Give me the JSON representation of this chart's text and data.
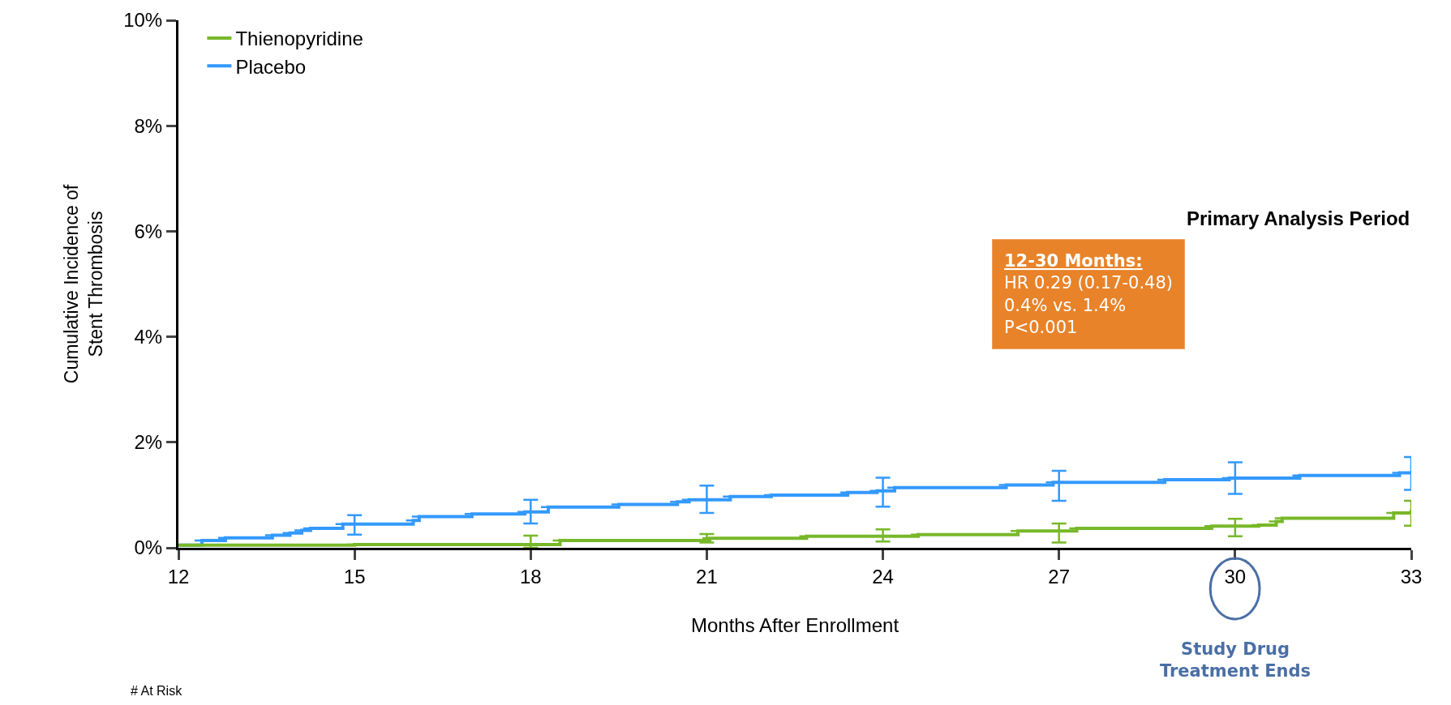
{
  "chart_data": {
    "type": "step",
    "xlabel": "Months After Enrollment",
    "ylabel": "Cumulative Incidence of\nStent Thrombosis",
    "xlim": [
      12,
      33
    ],
    "xticks": [
      12,
      15,
      18,
      21,
      24,
      27,
      30,
      33
    ],
    "ylim": [
      0,
      10
    ],
    "yticks": [
      {
        "value": 0,
        "label": "0%"
      },
      {
        "value": 2,
        "label": "2%"
      },
      {
        "value": 4,
        "label": "4%"
      },
      {
        "value": 6,
        "label": "6%"
      },
      {
        "value": 8,
        "label": "8%"
      },
      {
        "value": 10,
        "label": "10%"
      }
    ],
    "grid": false,
    "legend": "top left",
    "marker": "none",
    "line_style": "solid",
    "series": [
      {
        "name": "Thienopyridine",
        "color": "#77b829",
        "x": [
          12,
          15,
          18,
          18.5,
          21,
          21.05,
          22.7,
          24,
          24.6,
          26.3,
          27,
          27.3,
          29.6,
          30,
          30.4,
          30.7,
          30.8,
          32.7,
          33
        ],
        "values": [
          0.05,
          0.06,
          0.06,
          0.14,
          0.14,
          0.18,
          0.22,
          0.22,
          0.25,
          0.32,
          0.32,
          0.37,
          0.41,
          0.41,
          0.43,
          0.5,
          0.56,
          0.66,
          0.72
        ],
        "errors": [
          null,
          null,
          [
            0,
            0.23
          ],
          null,
          [
            0.1,
            0.26
          ],
          null,
          null,
          [
            0.12,
            0.35
          ],
          null,
          null,
          [
            0.1,
            0.46
          ],
          null,
          null,
          [
            0.22,
            0.55
          ],
          null,
          null,
          null,
          null,
          [
            0.42,
            0.89
          ]
        ]
      },
      {
        "name": "Placebo",
        "color": "#3399ff",
        "x": [
          12,
          12.4,
          12.8,
          13.6,
          13.9,
          14.1,
          14.25,
          14.8,
          15,
          16.0,
          16.1,
          17.0,
          17.9,
          18,
          18.3,
          19.5,
          20.5,
          20.7,
          21,
          21.4,
          22.1,
          22.9,
          23.4,
          23.9,
          24,
          24.2,
          26.1,
          26.9,
          27,
          28.8,
          29.9,
          30,
          31.1,
          32.8,
          33
        ],
        "values": [
          0.05,
          0.14,
          0.19,
          0.24,
          0.28,
          0.33,
          0.37,
          0.45,
          0.45,
          0.52,
          0.59,
          0.64,
          0.68,
          0.68,
          0.77,
          0.82,
          0.87,
          0.91,
          0.91,
          0.97,
          1.0,
          1.0,
          1.05,
          1.08,
          1.08,
          1.14,
          1.19,
          1.24,
          1.24,
          1.29,
          1.32,
          1.32,
          1.37,
          1.42,
          1.42
        ],
        "errors": [
          null,
          null,
          null,
          null,
          null,
          null,
          null,
          null,
          [
            0.25,
            0.62
          ],
          null,
          null,
          null,
          null,
          [
            0.46,
            0.91
          ],
          null,
          null,
          null,
          null,
          [
            0.66,
            1.18
          ],
          null,
          null,
          null,
          null,
          null,
          [
            0.78,
            1.33
          ],
          null,
          null,
          null,
          [
            0.89,
            1.46
          ],
          null,
          null,
          [
            1.02,
            1.62
          ],
          null,
          null,
          [
            1.1,
            1.72
          ]
        ]
      }
    ],
    "annotations": [
      "Primary Analysis Period",
      "12-30 Months:\nHR 0.29 (0.17-0.48)\n0.4% vs. 1.4%\nP<0.001",
      "Study Drug\nTreatment Ends",
      "# At Risk"
    ]
  }
}
